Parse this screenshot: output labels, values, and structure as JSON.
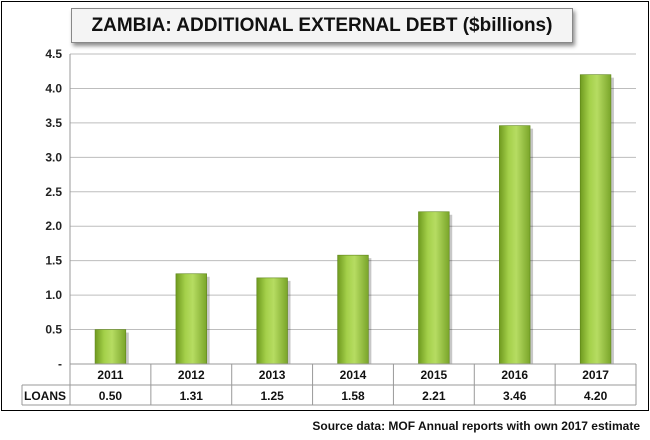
{
  "chart_data": {
    "type": "bar",
    "title": "ZAMBIA: ADDITIONAL EXTERNAL DEBT ($billions)",
    "categories": [
      "2011",
      "2012",
      "2013",
      "2014",
      "2015",
      "2016",
      "2017"
    ],
    "series": [
      {
        "name": "LOANS",
        "values": [
          0.5,
          1.31,
          1.25,
          1.58,
          2.21,
          3.46,
          4.2
        ]
      }
    ],
    "value_labels": [
      "0.50",
      "1.31",
      "1.25",
      "1.58",
      "2.21",
      "3.46",
      "4.20"
    ],
    "ylim": [
      0,
      4.5
    ],
    "yticks": [
      "-",
      "0.5",
      "1.0",
      "1.5",
      "2.0",
      "2.5",
      "3.0",
      "3.5",
      "4.0",
      "4.5"
    ],
    "grid": true,
    "legend": "data table below chart",
    "xlabel": "",
    "ylabel": "",
    "bar_color": "#8fc234",
    "source": "Source data: MOF Annual reports with own 2017 estimate"
  }
}
